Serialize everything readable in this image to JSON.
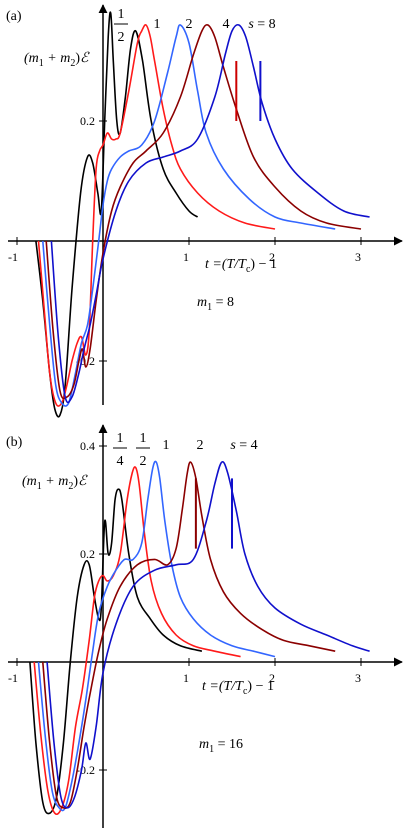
{
  "chart_data": [
    {
      "panel_label": "(a)",
      "type": "line",
      "ylabel_text": "(m",
      "ylabel_sub1": "1",
      "ylabel_plus": " + m",
      "ylabel_sub2": "2",
      "ylabel_close": ")",
      "ylabel_symbol": "ℰ",
      "xlabel_text": "t =(T/T",
      "xlabel_sub": "c",
      "xlabel_close": ") − 1",
      "param_text": "m",
      "param_sub": "1",
      "param_rest": " = 8",
      "xlim": [
        -1.0,
        3.1
      ],
      "ylim": [
        -0.31,
        0.41
      ],
      "x_ticks": [
        {
          "v": -1,
          "label": "-1"
        },
        {
          "v": 1,
          "label": "1"
        },
        {
          "v": 2,
          "label": "2"
        },
        {
          "v": 3,
          "label": "3"
        }
      ],
      "y_ticks": [
        {
          "v": 0.2,
          "label": "0.2"
        },
        {
          "v": -0.2,
          "label": "-0.2"
        }
      ],
      "series": [
        {
          "label": "1/2",
          "color": "#000000",
          "x": [
            -0.78,
            -0.7,
            -0.62,
            -0.56,
            -0.5,
            -0.44,
            -0.36,
            -0.26,
            -0.18,
            -0.12,
            -0.06,
            -0.02,
            0.02,
            0.06,
            0.09,
            0.12,
            0.16,
            0.2,
            0.26,
            0.32,
            0.38,
            0.46,
            0.56,
            0.7,
            0.85,
            1.0,
            1.1
          ],
          "y": [
            0.0,
            -0.1,
            -0.22,
            -0.28,
            -0.29,
            -0.24,
            -0.08,
            0.08,
            0.14,
            0.13,
            0.08,
            0.05,
            0.2,
            0.34,
            0.38,
            0.3,
            0.2,
            0.18,
            0.24,
            0.32,
            0.35,
            0.3,
            0.2,
            0.12,
            0.08,
            0.05,
            0.04
          ]
        },
        {
          "label": "1",
          "color": "#ff1a1a",
          "x": [
            -0.75,
            -0.68,
            -0.62,
            -0.55,
            -0.48,
            -0.42,
            -0.36,
            -0.3,
            -0.25,
            -0.2,
            -0.16,
            -0.12,
            -0.08,
            -0.04,
            0.0,
            0.05,
            0.1,
            0.15,
            0.2,
            0.3,
            0.4,
            0.45,
            0.5,
            0.55,
            0.6,
            0.7,
            0.8,
            0.9,
            1.1,
            1.35,
            1.65,
            2.0
          ],
          "y": [
            0.0,
            -0.12,
            -0.22,
            -0.27,
            -0.27,
            -0.24,
            -0.2,
            -0.17,
            -0.16,
            -0.19,
            -0.15,
            0.0,
            0.12,
            0.15,
            0.16,
            0.18,
            0.17,
            0.17,
            0.18,
            0.25,
            0.33,
            0.35,
            0.36,
            0.34,
            0.3,
            0.22,
            0.16,
            0.12,
            0.08,
            0.05,
            0.03,
            0.02
          ]
        },
        {
          "label": "2",
          "color": "#3366ff",
          "x": [
            -0.7,
            -0.62,
            -0.55,
            -0.48,
            -0.4,
            -0.32,
            -0.25,
            -0.18,
            -0.12,
            -0.05,
            0.0,
            0.05,
            0.1,
            0.2,
            0.3,
            0.45,
            0.6,
            0.75,
            0.85,
            0.9,
            1.0,
            1.1,
            1.2,
            1.4,
            1.7,
            2.0,
            2.3,
            2.7
          ],
          "y": [
            0.0,
            -0.14,
            -0.24,
            -0.27,
            -0.27,
            -0.22,
            -0.17,
            -0.14,
            -0.08,
            0.0,
            0.06,
            0.1,
            0.12,
            0.14,
            0.15,
            0.16,
            0.2,
            0.28,
            0.34,
            0.36,
            0.33,
            0.25,
            0.18,
            0.12,
            0.07,
            0.04,
            0.03,
            0.02
          ]
        },
        {
          "label": "4",
          "color": "#8b0000",
          "x": [
            -0.66,
            -0.58,
            -0.5,
            -0.42,
            -0.34,
            -0.28,
            -0.24,
            -0.2,
            -0.15,
            -0.08,
            0.0,
            0.1,
            0.2,
            0.35,
            0.5,
            0.7,
            0.9,
            1.05,
            1.15,
            1.22,
            1.3,
            1.4,
            1.55,
            1.75,
            2.0,
            2.3,
            2.6,
            3.0
          ],
          "y": [
            0.0,
            -0.15,
            -0.25,
            -0.26,
            -0.24,
            -0.2,
            -0.18,
            -0.21,
            -0.18,
            -0.1,
            -0.02,
            0.05,
            0.09,
            0.13,
            0.15,
            0.18,
            0.24,
            0.31,
            0.35,
            0.36,
            0.34,
            0.29,
            0.22,
            0.14,
            0.09,
            0.05,
            0.03,
            0.02
          ]
        },
        {
          "label": "s = 8",
          "color": "#1010cc",
          "x": [
            -0.6,
            -0.52,
            -0.44,
            -0.36,
            -0.28,
            -0.22,
            -0.15,
            -0.08,
            0.0,
            0.15,
            0.3,
            0.5,
            0.7,
            0.9,
            1.1,
            1.3,
            1.42,
            1.5,
            1.58,
            1.66,
            1.75,
            1.85,
            2.0,
            2.2,
            2.5,
            2.8,
            3.1
          ],
          "y": [
            0.0,
            -0.16,
            -0.26,
            -0.26,
            -0.22,
            -0.18,
            -0.14,
            -0.09,
            -0.03,
            0.05,
            0.1,
            0.13,
            0.14,
            0.15,
            0.17,
            0.24,
            0.31,
            0.35,
            0.36,
            0.34,
            0.29,
            0.23,
            0.17,
            0.12,
            0.08,
            0.05,
            0.04
          ]
        }
      ],
      "markers": [
        {
          "x": 1.55,
          "y0": 0.2,
          "y1": 0.3,
          "color": "#cc0000"
        },
        {
          "x": 1.83,
          "y0": 0.2,
          "y1": 0.3,
          "color": "#1010cc"
        }
      ]
    },
    {
      "panel_label": "(b)",
      "type": "line",
      "ylabel_text": "(m",
      "ylabel_sub1": "1",
      "ylabel_plus": " + m",
      "ylabel_sub2": "2",
      "ylabel_close": ")",
      "ylabel_symbol": "ℰ",
      "xlabel_text": "t =(T/T",
      "xlabel_sub": "c",
      "xlabel_close": ") − 1",
      "param_text": "m",
      "param_sub": "1",
      "param_rest": " = 16",
      "xlim": [
        -1.0,
        3.1
      ],
      "ylim": [
        -0.3,
        0.42
      ],
      "x_ticks": [
        {
          "v": -1,
          "label": "-1"
        },
        {
          "v": 1,
          "label": "1"
        },
        {
          "v": 2,
          "label": "2"
        },
        {
          "v": 3,
          "label": "3"
        }
      ],
      "y_ticks": [
        {
          "v": 0.4,
          "label": "0.4"
        },
        {
          "v": 0.2,
          "label": "0.2"
        },
        {
          "v": -0.2,
          "label": "-0.2"
        }
      ],
      "series": [
        {
          "label": "1/4",
          "color": "#000000",
          "x": [
            -0.85,
            -0.78,
            -0.7,
            -0.62,
            -0.54,
            -0.46,
            -0.38,
            -0.3,
            -0.22,
            -0.16,
            -0.1,
            -0.05,
            -0.02,
            0.02,
            0.06,
            0.1,
            0.14,
            0.18,
            0.22,
            0.3,
            0.4,
            0.55,
            0.7,
            0.9,
            1.15
          ],
          "y": [
            0.0,
            -0.15,
            -0.26,
            -0.28,
            -0.25,
            -0.15,
            0.0,
            0.12,
            0.18,
            0.18,
            0.12,
            0.08,
            0.1,
            0.26,
            0.2,
            0.22,
            0.3,
            0.32,
            0.3,
            0.2,
            0.12,
            0.08,
            0.05,
            0.03,
            0.02
          ]
        },
        {
          "label": "1/2",
          "color": "#ff1a1a",
          "x": [
            -0.8,
            -0.72,
            -0.64,
            -0.56,
            -0.48,
            -0.4,
            -0.32,
            -0.24,
            -0.16,
            -0.1,
            -0.05,
            0.0,
            0.05,
            0.12,
            0.2,
            0.28,
            0.34,
            0.38,
            0.42,
            0.48,
            0.56,
            0.68,
            0.85,
            1.05,
            1.3,
            1.6
          ],
          "y": [
            0.0,
            -0.14,
            -0.24,
            -0.28,
            -0.27,
            -0.22,
            -0.12,
            -0.05,
            0.04,
            0.12,
            0.15,
            0.16,
            0.15,
            0.16,
            0.2,
            0.3,
            0.35,
            0.36,
            0.33,
            0.24,
            0.15,
            0.09,
            0.05,
            0.03,
            0.02,
            0.01
          ]
        },
        {
          "label": "1",
          "color": "#3366ff",
          "x": [
            -0.75,
            -0.67,
            -0.59,
            -0.51,
            -0.44,
            -0.36,
            -0.28,
            -0.2,
            -0.12,
            -0.05,
            0.05,
            0.15,
            0.25,
            0.35,
            0.45,
            0.52,
            0.58,
            0.62,
            0.66,
            0.72,
            0.8,
            0.9,
            1.05,
            1.25,
            1.5,
            1.75,
            2.0
          ],
          "y": [
            0.0,
            -0.14,
            -0.24,
            -0.27,
            -0.27,
            -0.22,
            -0.15,
            -0.07,
            0.02,
            0.09,
            0.14,
            0.17,
            0.19,
            0.19,
            0.22,
            0.3,
            0.36,
            0.37,
            0.34,
            0.26,
            0.18,
            0.12,
            0.08,
            0.05,
            0.03,
            0.02,
            0.01
          ]
        },
        {
          "label": "2",
          "color": "#8b0000",
          "x": [
            -0.7,
            -0.62,
            -0.54,
            -0.46,
            -0.38,
            -0.3,
            -0.22,
            -0.14,
            -0.05,
            0.05,
            0.2,
            0.4,
            0.6,
            0.75,
            0.85,
            0.92,
            0.98,
            1.02,
            1.08,
            1.15,
            1.25,
            1.4,
            1.6,
            1.85,
            2.1,
            2.4,
            2.7
          ],
          "y": [
            0.0,
            -0.15,
            -0.25,
            -0.27,
            -0.26,
            -0.2,
            -0.12,
            -0.05,
            0.02,
            0.08,
            0.14,
            0.18,
            0.19,
            0.18,
            0.21,
            0.28,
            0.35,
            0.37,
            0.34,
            0.27,
            0.19,
            0.13,
            0.09,
            0.06,
            0.04,
            0.03,
            0.02
          ]
        },
        {
          "label": "s = 4",
          "color": "#1010cc",
          "x": [
            -0.65,
            -0.57,
            -0.49,
            -0.41,
            -0.33,
            -0.25,
            -0.2,
            -0.15,
            -0.08,
            0.0,
            0.15,
            0.35,
            0.6,
            0.85,
            1.05,
            1.2,
            1.3,
            1.38,
            1.45,
            1.55,
            1.65,
            1.8,
            2.0,
            2.3,
            2.6,
            2.9,
            3.1
          ],
          "y": [
            0.0,
            -0.15,
            -0.25,
            -0.27,
            -0.25,
            -0.2,
            -0.15,
            -0.18,
            -0.12,
            -0.02,
            0.07,
            0.14,
            0.17,
            0.18,
            0.19,
            0.26,
            0.33,
            0.37,
            0.35,
            0.28,
            0.2,
            0.14,
            0.1,
            0.07,
            0.05,
            0.03,
            0.02
          ]
        }
      ],
      "markers": [
        {
          "x": 1.08,
          "y0": 0.21,
          "y1": 0.34,
          "color": "#8b0000"
        },
        {
          "x": 1.5,
          "y0": 0.21,
          "y1": 0.34,
          "color": "#1010cc"
        }
      ]
    }
  ]
}
